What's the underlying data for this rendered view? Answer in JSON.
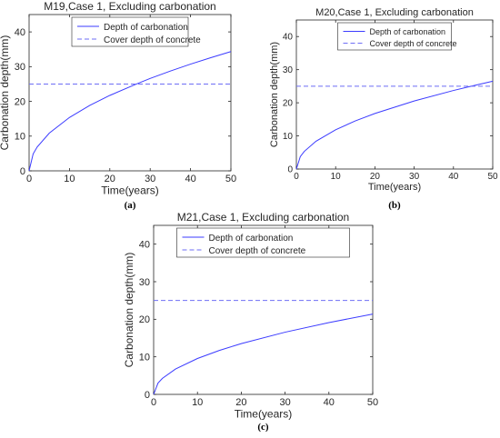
{
  "colors": {
    "line": "#3b3bff",
    "dashed": "#6e6ef5",
    "axis": "#262626",
    "background": "#ffffff"
  },
  "chart_data": [
    {
      "type": "line",
      "panel_label": "(a)",
      "title": "M19,Case 1, Excluding carbonation",
      "xlabel": "Time(years)",
      "ylabel": "Carbonation depth(mm)",
      "xlim": [
        0,
        50
      ],
      "ylim": [
        0,
        45
      ],
      "xticks": [
        0,
        10,
        20,
        30,
        40,
        50
      ],
      "yticks": [
        0,
        10,
        20,
        30,
        40
      ],
      "grid": false,
      "legend": "top-center",
      "series": [
        {
          "name": "Depth of carbonation",
          "style": "solid",
          "x": [
            0,
            1,
            2,
            5,
            10,
            15,
            20,
            26.6,
            30,
            35,
            40,
            45,
            50
          ],
          "y": [
            0,
            4.86,
            6.87,
            10.86,
            15.36,
            18.81,
            21.72,
            25.0,
            26.6,
            28.73,
            30.72,
            32.58,
            34.35
          ]
        },
        {
          "name": "Cover depth of concrete",
          "style": "dashed",
          "x": [
            0,
            50
          ],
          "y": [
            25,
            25
          ]
        }
      ]
    },
    {
      "type": "line",
      "panel_label": "(b)",
      "title": "M20,Case 1, Excluding carbonation",
      "xlabel": "Time(years)",
      "ylabel": "Carbonation depth(mm)",
      "xlim": [
        0,
        50
      ],
      "ylim": [
        0,
        45
      ],
      "xticks": [
        0,
        10,
        20,
        30,
        40,
        50
      ],
      "yticks": [
        0,
        10,
        20,
        30,
        40
      ],
      "grid": false,
      "legend": "top-center",
      "series": [
        {
          "name": "Depth of carbonation",
          "style": "solid",
          "x": [
            0,
            1,
            2,
            5,
            10,
            15,
            20,
            30,
            40,
            44.5,
            50
          ],
          "y": [
            0,
            3.75,
            5.3,
            8.39,
            11.86,
            14.52,
            16.77,
            20.54,
            23.72,
            25.0,
            26.52
          ]
        },
        {
          "name": "Cover depth of concrete",
          "style": "dashed",
          "x": [
            0,
            50
          ],
          "y": [
            25,
            25
          ]
        }
      ]
    },
    {
      "type": "line",
      "panel_label": "(c)",
      "title": "M21,Case 1, Excluding carbonation",
      "xlabel": "Time(years)",
      "ylabel": "Carbonation depth(mm)",
      "xlim": [
        0,
        50
      ],
      "ylim": [
        0,
        45
      ],
      "xticks": [
        0,
        10,
        20,
        30,
        40,
        50
      ],
      "yticks": [
        0,
        10,
        20,
        30,
        40
      ],
      "grid": false,
      "legend": "top-center",
      "series": [
        {
          "name": "Depth of carbonation",
          "style": "solid",
          "x": [
            0,
            1,
            2,
            5,
            10,
            15,
            20,
            30,
            40,
            50
          ],
          "y": [
            0,
            3.02,
            4.27,
            6.76,
            9.56,
            11.71,
            13.52,
            16.56,
            19.12,
            21.38
          ]
        },
        {
          "name": "Cover depth of concrete",
          "style": "dashed",
          "x": [
            0,
            50
          ],
          "y": [
            25,
            25
          ]
        }
      ]
    }
  ]
}
